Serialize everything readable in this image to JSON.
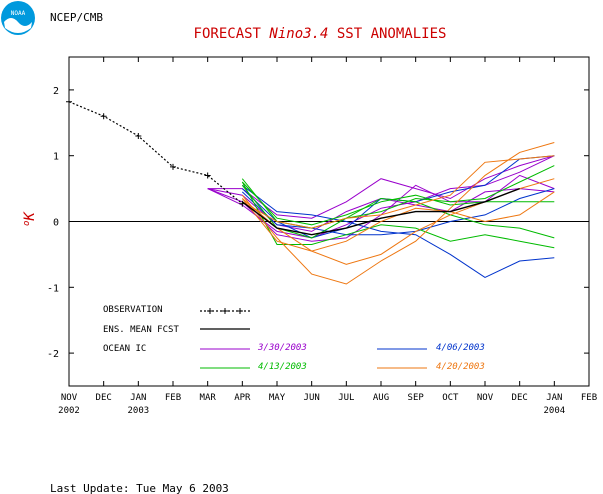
{
  "header": {
    "agency": "NCEP/CMB",
    "logo_text": "NOAA"
  },
  "footer": {
    "last_update": "Last Update: Tue May 6 2003"
  },
  "colors": {
    "title": "#cc0000",
    "observation": "#000000",
    "ens_mean": "#000000",
    "ic_0330": "#9900cc",
    "ic_0406": "#0033cc",
    "ic_0413": "#00bb00",
    "ic_0420": "#ee7711",
    "logo_blue": "#0099dd"
  },
  "chart_data": {
    "type": "line",
    "title_prefix": "FORECAST ",
    "title_italic": "Nino3.4",
    "title_suffix": " SST ANOMALIES",
    "ylabel_degree": "o",
    "ylabel_unit": "K",
    "xlim": [
      0,
      15
    ],
    "ylim": [
      -2.5,
      2.5
    ],
    "y_ticks": [
      -2,
      -1,
      0,
      1,
      2
    ],
    "y_tick_labels": [
      "-2",
      "-1",
      "0",
      "1",
      "2"
    ],
    "x_tick_labels": [
      "NOV",
      "DEC",
      "JAN",
      "FEB",
      "MAR",
      "APR",
      "MAY",
      "JUN",
      "JUL",
      "AUG",
      "SEP",
      "OCT",
      "NOV",
      "DEC",
      "JAN",
      "FEB"
    ],
    "x_year_labels": [
      {
        "index": 0,
        "label": "2002"
      },
      {
        "index": 2,
        "label": "2003"
      },
      {
        "index": 14,
        "label": "2004"
      }
    ],
    "zero_line": 0,
    "legend": {
      "observation": "OBSERVATION",
      "ens_mean": "ENS. MEAN FCST",
      "ocean_ic": "OCEAN IC",
      "ic_0330": "3/30/2003",
      "ic_0406": "4/06/2003",
      "ic_0413": "4/13/2003",
      "ic_0420": "4/20/2003"
    },
    "observation": {
      "x": [
        0,
        1,
        2,
        3,
        4,
        5
      ],
      "y": [
        1.82,
        1.6,
        1.3,
        0.83,
        0.7,
        0.27
      ]
    },
    "ens_mean": {
      "x": [
        5,
        6,
        7,
        8,
        9,
        10,
        11,
        12,
        13
      ],
      "y": [
        0.3,
        -0.1,
        -0.2,
        -0.1,
        0.05,
        0.15,
        0.15,
        0.3,
        0.5
      ]
    },
    "series": [
      {
        "group": "ic_0330",
        "x": [
          4,
          5,
          6,
          7,
          8,
          9,
          10,
          11,
          12,
          13,
          14
        ],
        "y": [
          0.5,
          0.5,
          0.1,
          0.05,
          0.3,
          0.65,
          0.5,
          0.35,
          0.65,
          0.85,
          1.0
        ]
      },
      {
        "group": "ic_0330",
        "x": [
          4,
          5,
          6,
          7,
          8,
          9,
          10,
          11,
          12,
          13,
          14
        ],
        "y": [
          0.5,
          0.25,
          -0.15,
          -0.25,
          -0.05,
          0.2,
          0.3,
          0.5,
          0.55,
          0.75,
          1.0
        ]
      },
      {
        "group": "ic_0330",
        "x": [
          4,
          5,
          6,
          7,
          8,
          9,
          10,
          11,
          12,
          13,
          14
        ],
        "y": [
          0.5,
          0.4,
          -0.05,
          -0.15,
          0.15,
          0.35,
          0.25,
          0.15,
          0.45,
          0.5,
          0.45
        ]
      },
      {
        "group": "ic_0330",
        "x": [
          4,
          5,
          6,
          7,
          8,
          9,
          10,
          11,
          12,
          13,
          14
        ],
        "y": [
          0.5,
          0.3,
          -0.2,
          -0.3,
          -0.25,
          0.1,
          0.55,
          0.3,
          0.3,
          0.7,
          0.5
        ]
      },
      {
        "group": "ic_0406",
        "x": [
          5,
          6,
          7,
          8,
          9,
          10,
          11,
          12,
          13,
          14
        ],
        "y": [
          0.55,
          0.15,
          0.1,
          0.0,
          -0.15,
          -0.2,
          -0.5,
          -0.85,
          -0.6,
          -0.55
        ]
      },
      {
        "group": "ic_0406",
        "x": [
          5,
          6,
          7,
          8,
          9,
          10,
          11,
          12,
          13,
          14
        ],
        "y": [
          0.5,
          0.0,
          -0.25,
          -0.1,
          0.35,
          0.3,
          0.45,
          0.55,
          0.95,
          1.0
        ]
      },
      {
        "group": "ic_0406",
        "x": [
          5,
          6,
          7,
          8,
          9,
          10,
          11,
          12,
          13,
          14
        ],
        "y": [
          0.45,
          -0.05,
          -0.1,
          -0.2,
          -0.2,
          -0.15,
          0.0,
          0.1,
          0.35,
          0.5
        ]
      },
      {
        "group": "ic_0413",
        "x": [
          5,
          6,
          7,
          8,
          9,
          10,
          11,
          12,
          13,
          14
        ],
        "y": [
          0.65,
          0.0,
          -0.1,
          0.05,
          0.15,
          0.35,
          0.3,
          0.35,
          0.6,
          0.85
        ]
      },
      {
        "group": "ic_0413",
        "x": [
          5,
          6,
          7,
          8,
          9,
          10,
          11,
          12,
          13,
          14
        ],
        "y": [
          0.6,
          -0.35,
          -0.35,
          -0.2,
          -0.05,
          -0.1,
          -0.3,
          -0.2,
          -0.3,
          -0.4
        ]
      },
      {
        "group": "ic_0413",
        "x": [
          5,
          6,
          7,
          8,
          9,
          10,
          11,
          12,
          13,
          14
        ],
        "y": [
          0.55,
          -0.1,
          -0.25,
          0.05,
          0.35,
          0.3,
          0.1,
          -0.05,
          -0.1,
          -0.25
        ]
      },
      {
        "group": "ic_0413",
        "x": [
          5,
          6,
          7,
          8,
          9,
          10,
          11,
          12,
          13,
          14
        ],
        "y": [
          0.6,
          0.05,
          -0.05,
          0.1,
          0.3,
          0.4,
          0.25,
          0.3,
          0.3,
          0.3
        ]
      },
      {
        "group": "ic_0420",
        "x": [
          5,
          6,
          7,
          8,
          9,
          10,
          11,
          12,
          13,
          14
        ],
        "y": [
          0.4,
          -0.25,
          -0.8,
          -0.95,
          -0.6,
          -0.3,
          0.2,
          0.7,
          1.05,
          1.2
        ]
      },
      {
        "group": "ic_0420",
        "x": [
          5,
          6,
          7,
          8,
          9,
          10,
          11,
          12,
          13,
          14
        ],
        "y": [
          0.35,
          -0.3,
          -0.45,
          -0.65,
          -0.5,
          -0.15,
          0.1,
          0.3,
          0.5,
          0.65
        ]
      },
      {
        "group": "ic_0420",
        "x": [
          5,
          6,
          7,
          8,
          9,
          10,
          11,
          12,
          13,
          14
        ],
        "y": [
          0.35,
          -0.1,
          -0.45,
          -0.3,
          0.0,
          0.2,
          0.15,
          0.0,
          0.1,
          0.45
        ]
      },
      {
        "group": "ic_0420",
        "x": [
          5,
          6,
          7,
          8,
          9,
          10,
          11,
          12,
          13,
          14
        ],
        "y": [
          0.3,
          0.0,
          -0.1,
          0.05,
          0.1,
          0.25,
          0.4,
          0.9,
          0.95,
          1.0
        ]
      }
    ]
  }
}
